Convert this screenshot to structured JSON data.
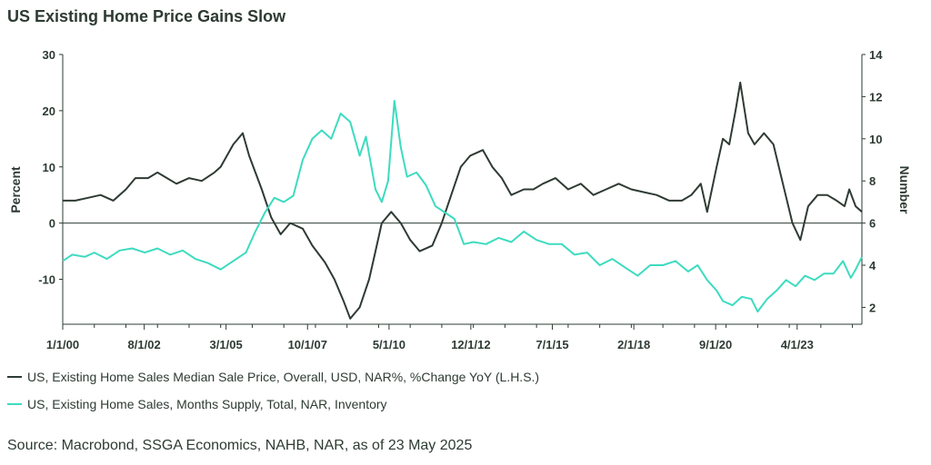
{
  "chart_data": {
    "type": "line",
    "title": "US Existing Home Price Gains Slow",
    "ylabel_left": "Percent",
    "ylabel_right": "Number",
    "ylim_left": [
      -18,
      30
    ],
    "yticks_left": [
      30,
      20,
      10,
      0,
      -10
    ],
    "ylim_right": [
      1.2,
      14
    ],
    "yticks_right": [
      14,
      12,
      10,
      8,
      6,
      4,
      2
    ],
    "xlim": [
      2000.0,
      2025.3
    ],
    "xtick_labels": [
      "1/1/00",
      "8/1/02",
      "3/1/05",
      "10/1/07",
      "5/1/10",
      "12/1/12",
      "7/1/15",
      "2/1/18",
      "9/1/20",
      "4/1/23"
    ],
    "xtick_years": [
      2000.0,
      2002.58,
      2005.17,
      2007.75,
      2010.33,
      2012.92,
      2015.5,
      2018.08,
      2020.67,
      2023.25
    ],
    "legend_position": "bottom",
    "series": [
      {
        "name": "US, Existing Home Sales Median Sale Price, Overall, USD, NAR%, %Change YoY (L.H.S.)",
        "axis": "left",
        "color": "#2e3b33",
        "points": [
          [
            2000.0,
            4
          ],
          [
            2000.4,
            4
          ],
          [
            2000.8,
            4.5
          ],
          [
            2001.2,
            5
          ],
          [
            2001.6,
            4
          ],
          [
            2002.0,
            6
          ],
          [
            2002.3,
            8
          ],
          [
            2002.7,
            8
          ],
          [
            2003.0,
            9
          ],
          [
            2003.3,
            8
          ],
          [
            2003.6,
            7
          ],
          [
            2004.0,
            8
          ],
          [
            2004.4,
            7.5
          ],
          [
            2004.8,
            9
          ],
          [
            2005.0,
            10
          ],
          [
            2005.4,
            14
          ],
          [
            2005.7,
            16
          ],
          [
            2005.9,
            12
          ],
          [
            2006.3,
            6
          ],
          [
            2006.6,
            1
          ],
          [
            2006.9,
            -2
          ],
          [
            2007.2,
            0
          ],
          [
            2007.6,
            -1
          ],
          [
            2007.9,
            -4
          ],
          [
            2008.3,
            -7
          ],
          [
            2008.6,
            -10
          ],
          [
            2008.9,
            -14
          ],
          [
            2009.1,
            -17
          ],
          [
            2009.4,
            -15
          ],
          [
            2009.7,
            -10
          ],
          [
            2009.9,
            -5
          ],
          [
            2010.1,
            0
          ],
          [
            2010.4,
            2
          ],
          [
            2010.7,
            0
          ],
          [
            2011.0,
            -3
          ],
          [
            2011.3,
            -5
          ],
          [
            2011.7,
            -4
          ],
          [
            2012.0,
            0
          ],
          [
            2012.3,
            5
          ],
          [
            2012.6,
            10
          ],
          [
            2012.9,
            12
          ],
          [
            2013.3,
            13
          ],
          [
            2013.6,
            10
          ],
          [
            2013.9,
            8
          ],
          [
            2014.2,
            5
          ],
          [
            2014.6,
            6
          ],
          [
            2014.9,
            6
          ],
          [
            2015.2,
            7
          ],
          [
            2015.6,
            8
          ],
          [
            2016.0,
            6
          ],
          [
            2016.4,
            7
          ],
          [
            2016.8,
            5
          ],
          [
            2017.2,
            6
          ],
          [
            2017.6,
            7
          ],
          [
            2018.0,
            6
          ],
          [
            2018.4,
            5.5
          ],
          [
            2018.8,
            5
          ],
          [
            2019.2,
            4
          ],
          [
            2019.6,
            4
          ],
          [
            2019.9,
            5
          ],
          [
            2020.2,
            7
          ],
          [
            2020.4,
            2
          ],
          [
            2020.7,
            10
          ],
          [
            2020.9,
            15
          ],
          [
            2021.1,
            14
          ],
          [
            2021.3,
            20
          ],
          [
            2021.45,
            25
          ],
          [
            2021.7,
            16
          ],
          [
            2021.9,
            14
          ],
          [
            2022.2,
            16
          ],
          [
            2022.5,
            14
          ],
          [
            2022.8,
            7
          ],
          [
            2023.1,
            0
          ],
          [
            2023.35,
            -3
          ],
          [
            2023.6,
            3
          ],
          [
            2023.9,
            5
          ],
          [
            2024.2,
            5
          ],
          [
            2024.5,
            4
          ],
          [
            2024.75,
            3
          ],
          [
            2024.9,
            6
          ],
          [
            2025.1,
            3
          ],
          [
            2025.3,
            2
          ]
        ]
      },
      {
        "name": "US, Existing Home Sales, Months Supply, Total, NAR, Inventory",
        "axis": "right",
        "color": "#3ddbc0",
        "points": [
          [
            2000.0,
            4.2
          ],
          [
            2000.3,
            4.5
          ],
          [
            2000.7,
            4.4
          ],
          [
            2001.0,
            4.6
          ],
          [
            2001.4,
            4.3
          ],
          [
            2001.8,
            4.7
          ],
          [
            2002.2,
            4.8
          ],
          [
            2002.6,
            4.6
          ],
          [
            2003.0,
            4.8
          ],
          [
            2003.4,
            4.5
          ],
          [
            2003.8,
            4.7
          ],
          [
            2004.2,
            4.3
          ],
          [
            2004.6,
            4.1
          ],
          [
            2005.0,
            3.8
          ],
          [
            2005.4,
            4.2
          ],
          [
            2005.8,
            4.6
          ],
          [
            2006.1,
            5.6
          ],
          [
            2006.4,
            6.5
          ],
          [
            2006.7,
            7.2
          ],
          [
            2007.0,
            7.0
          ],
          [
            2007.3,
            7.3
          ],
          [
            2007.6,
            9.0
          ],
          [
            2007.9,
            10.0
          ],
          [
            2008.2,
            10.4
          ],
          [
            2008.5,
            10.0
          ],
          [
            2008.8,
            11.2
          ],
          [
            2009.1,
            10.8
          ],
          [
            2009.4,
            9.2
          ],
          [
            2009.6,
            10.1
          ],
          [
            2009.9,
            7.6
          ],
          [
            2010.1,
            7.0
          ],
          [
            2010.3,
            8.0
          ],
          [
            2010.5,
            11.8
          ],
          [
            2010.7,
            9.6
          ],
          [
            2010.9,
            8.2
          ],
          [
            2011.2,
            8.4
          ],
          [
            2011.5,
            7.8
          ],
          [
            2011.8,
            6.8
          ],
          [
            2012.1,
            6.5
          ],
          [
            2012.4,
            6.2
          ],
          [
            2012.7,
            5.0
          ],
          [
            2013.0,
            5.1
          ],
          [
            2013.4,
            5.0
          ],
          [
            2013.8,
            5.3
          ],
          [
            2014.2,
            5.1
          ],
          [
            2014.6,
            5.6
          ],
          [
            2015.0,
            5.2
          ],
          [
            2015.4,
            5.0
          ],
          [
            2015.8,
            5.0
          ],
          [
            2016.2,
            4.5
          ],
          [
            2016.6,
            4.6
          ],
          [
            2017.0,
            4.0
          ],
          [
            2017.4,
            4.3
          ],
          [
            2017.8,
            3.9
          ],
          [
            2018.2,
            3.5
          ],
          [
            2018.6,
            4.0
          ],
          [
            2019.0,
            4.0
          ],
          [
            2019.4,
            4.2
          ],
          [
            2019.8,
            3.7
          ],
          [
            2020.1,
            4.0
          ],
          [
            2020.4,
            3.3
          ],
          [
            2020.7,
            2.8
          ],
          [
            2020.9,
            2.3
          ],
          [
            2021.2,
            2.1
          ],
          [
            2021.5,
            2.5
          ],
          [
            2021.8,
            2.4
          ],
          [
            2022.0,
            1.8
          ],
          [
            2022.3,
            2.4
          ],
          [
            2022.6,
            2.8
          ],
          [
            2022.9,
            3.3
          ],
          [
            2023.2,
            3.0
          ],
          [
            2023.5,
            3.5
          ],
          [
            2023.8,
            3.3
          ],
          [
            2024.1,
            3.6
          ],
          [
            2024.4,
            3.6
          ],
          [
            2024.7,
            4.2
          ],
          [
            2024.95,
            3.4
          ],
          [
            2025.1,
            3.8
          ],
          [
            2025.3,
            4.4
          ]
        ]
      }
    ]
  },
  "source": "Source: Macrobond, SSGA Economics, NAHB, NAR, as of 23 May 2025"
}
